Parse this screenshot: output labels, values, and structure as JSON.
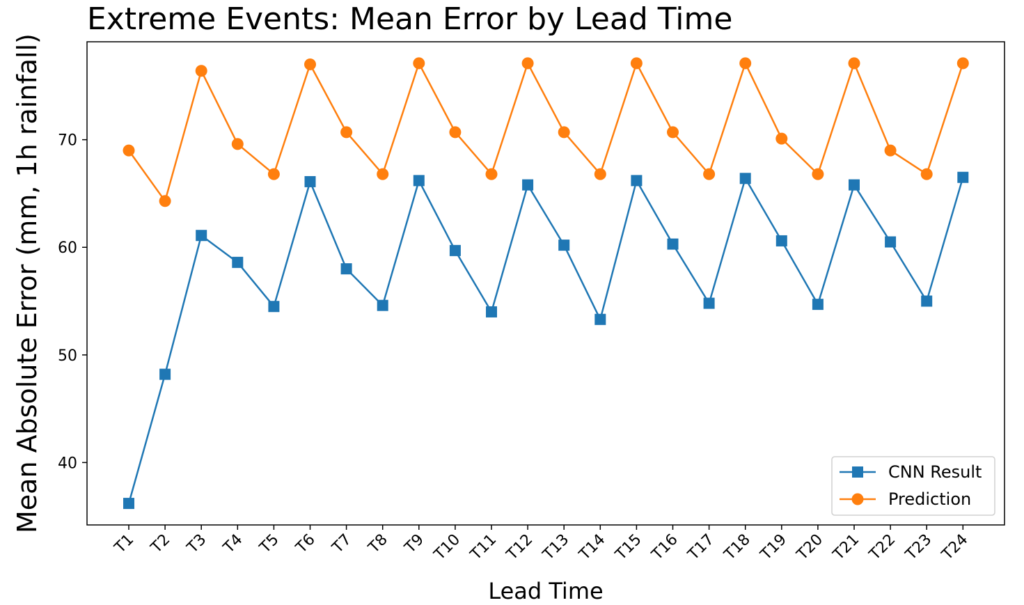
{
  "chart_data": {
    "type": "line",
    "title": "Extreme Events: Mean Error by Lead Time",
    "xlabel": "Lead Time",
    "ylabel": "Mean Absolute Error (mm, 1h rainfall)",
    "categories": [
      "T1",
      "T2",
      "T3",
      "T4",
      "T5",
      "T6",
      "T7",
      "T8",
      "T9",
      "T10",
      "T11",
      "T12",
      "T13",
      "T14",
      "T15",
      "T16",
      "T17",
      "T18",
      "T19",
      "T20",
      "T21",
      "T22",
      "T23",
      "T24"
    ],
    "yticks": [
      40,
      50,
      60,
      70
    ],
    "ylim": [
      34.2,
      79.1
    ],
    "grid": false,
    "legend_position": "lower-right",
    "series": [
      {
        "name": "CNN Result",
        "color": "#1f77b4",
        "marker": "square",
        "values": [
          36.2,
          48.2,
          61.1,
          58.6,
          54.5,
          66.1,
          58.0,
          54.6,
          66.2,
          59.7,
          54.0,
          65.8,
          60.2,
          53.3,
          66.2,
          60.3,
          54.8,
          66.4,
          60.6,
          54.7,
          65.8,
          60.5,
          55.0,
          66.5
        ]
      },
      {
        "name": "Prediction",
        "color": "#ff7f0e",
        "marker": "circle",
        "values": [
          69.0,
          64.3,
          76.4,
          69.6,
          66.8,
          77.0,
          70.7,
          66.8,
          77.1,
          70.7,
          66.8,
          77.1,
          70.7,
          66.8,
          77.1,
          70.7,
          66.8,
          77.1,
          70.1,
          66.8,
          77.1,
          69.0,
          66.8,
          77.1
        ]
      }
    ]
  }
}
